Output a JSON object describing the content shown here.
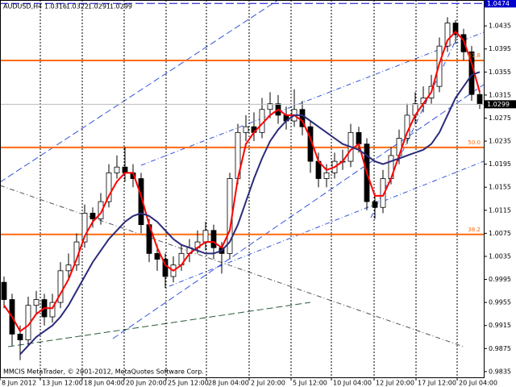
{
  "chart_data": {
    "type": "candlestick",
    "symbol": "AUDUSD,H4",
    "footer": "MMCIS MetaTrader, © 2001-2012, MetaQuotes Software Corp.",
    "xlim": [
      0,
      60
    ],
    "xticks": [
      {
        "value": 0,
        "label": "8 Jun 2012"
      },
      {
        "value": 5,
        "label": "13 Jun 12:00"
      },
      {
        "value": 10.2,
        "label": "18 Jun 04:00"
      },
      {
        "value": 15.4,
        "label": "20 Jun 20:00"
      },
      {
        "value": 20.6,
        "label": "25 Jun 12:00"
      },
      {
        "value": 25.6,
        "label": "28 Jun 04:00"
      },
      {
        "value": 30.9,
        "label": "2 Jul 20:00"
      },
      {
        "value": 36.1,
        "label": "5 Jul 12:00"
      },
      {
        "value": 41.1,
        "label": "10 Jul 04:00"
      },
      {
        "value": 46.4,
        "label": "12 Jul 20:00"
      },
      {
        "value": 51.6,
        "label": "17 Jul 12:00"
      },
      {
        "value": 56.7,
        "label": "20 Jul 04:00"
      }
    ],
    "ylim": [
      0.9825,
      1.048
    ],
    "yticks": [
      1.0435,
      1.0395,
      1.0355,
      1.0315,
      1.0275,
      1.0235,
      1.0195,
      1.0155,
      1.0115,
      1.0075,
      1.0035,
      0.9995,
      0.9955,
      0.9915,
      0.9875,
      0.9835
    ],
    "grid": true,
    "candles": {
      "open": [
        0.999,
        0.996,
        0.99,
        0.989,
        0.995,
        0.996,
        0.993,
        0.9955,
        1.001,
        1.002,
        1.006,
        1.011,
        1.01,
        1.013,
        1.018,
        1.019,
        1.018,
        1.017,
        1.009,
        1.004,
        1.003,
        1.0,
        1.002,
        1.004,
        1.005,
        1.006,
        1.008,
        1.005,
        1.004,
        1.017,
        1.025,
        1.026,
        1.025,
        1.029,
        1.03,
        1.028,
        1.027,
        1.029,
        1.026,
        1.02,
        1.017,
        1.018,
        1.02,
        1.02,
        1.025,
        1.023,
        1.013,
        1.012,
        1.017,
        1.021,
        1.024,
        1.028,
        1.03,
        1.031,
        1.033,
        1.04,
        1.044,
        1.042,
        1.039,
        1.0316
      ],
      "high": [
        1.0,
        0.997,
        0.9915,
        0.9965,
        0.9975,
        0.997,
        0.997,
        1.0025,
        1.004,
        1.0075,
        1.0125,
        1.012,
        1.0145,
        1.0195,
        1.021,
        1.0225,
        1.0195,
        1.018,
        1.01,
        1.0055,
        1.004,
        1.0035,
        1.0055,
        1.0065,
        1.008,
        1.0095,
        1.009,
        1.006,
        1.018,
        1.0265,
        1.028,
        1.0285,
        1.031,
        1.032,
        1.0315,
        1.0295,
        1.0325,
        1.0305,
        1.027,
        1.0215,
        1.0195,
        1.0215,
        1.022,
        1.0265,
        1.026,
        1.024,
        1.0145,
        1.0185,
        1.0225,
        1.0255,
        1.03,
        1.032,
        1.033,
        1.035,
        1.0415,
        1.045,
        1.0445,
        1.043,
        1.04,
        1.0322
      ],
      "low": [
        0.9945,
        0.988,
        0.9855,
        0.988,
        0.9935,
        0.9915,
        0.992,
        0.9945,
        0.9995,
        1.001,
        1.005,
        1.0085,
        1.009,
        1.012,
        1.017,
        1.0165,
        1.0155,
        1.0075,
        1.0025,
        1.001,
        0.998,
        0.999,
        1.001,
        1.0025,
        1.004,
        1.0045,
        1.003,
        1.0005,
        1.003,
        1.016,
        1.0235,
        1.0235,
        1.024,
        1.0275,
        1.0265,
        1.0255,
        1.026,
        1.0245,
        1.018,
        1.0155,
        1.0155,
        1.017,
        1.0185,
        1.019,
        1.0215,
        1.0115,
        1.01,
        1.011,
        1.016,
        1.0195,
        1.023,
        1.0265,
        1.0285,
        1.03,
        1.032,
        1.039,
        1.0405,
        1.0375,
        1.0305,
        1.0291
      ],
      "close": [
        0.996,
        0.99,
        0.989,
        0.995,
        0.996,
        0.993,
        0.9955,
        1.001,
        1.002,
        1.006,
        1.011,
        1.01,
        1.013,
        1.018,
        1.019,
        1.018,
        1.017,
        1.009,
        1.004,
        1.003,
        1.0,
        1.002,
        1.004,
        1.005,
        1.006,
        1.008,
        1.005,
        1.004,
        1.017,
        1.025,
        1.026,
        1.025,
        1.029,
        1.03,
        1.028,
        1.027,
        1.029,
        1.026,
        1.02,
        1.017,
        1.018,
        1.02,
        1.02,
        1.025,
        1.023,
        1.013,
        1.012,
        1.017,
        1.021,
        1.024,
        1.028,
        1.03,
        1.031,
        1.033,
        1.04,
        1.044,
        1.042,
        1.039,
        1.0316,
        1.0299
      ]
    },
    "moving_averages": [
      {
        "color": "#ff0000",
        "values": [
          0.995,
          0.993,
          0.9905,
          0.9915,
          0.9935,
          0.9945,
          0.9945,
          0.997,
          0.9995,
          1.003,
          1.007,
          1.0095,
          1.011,
          1.014,
          1.0165,
          1.018,
          1.018,
          1.014,
          1.009,
          1.005,
          1.002,
          1.001,
          1.002,
          1.004,
          1.005,
          1.006,
          1.006,
          1.005,
          1.008,
          1.017,
          1.023,
          1.025,
          1.0265,
          1.028,
          1.029,
          1.028,
          1.028,
          1.027,
          1.024,
          1.02,
          1.0185,
          1.019,
          1.02,
          1.022,
          1.023,
          1.018,
          1.014,
          1.014,
          1.017,
          1.021,
          1.025,
          1.028,
          1.03,
          1.032,
          1.037,
          1.041,
          1.0425,
          1.041,
          1.037,
          1.032
        ]
      },
      {
        "color": "#2b2b7a",
        "values": [
          null,
          null,
          0.9865,
          0.988,
          0.9895,
          0.9905,
          0.9915,
          0.993,
          0.995,
          0.9975,
          1.0,
          1.0025,
          1.0045,
          1.0065,
          1.008,
          1.0095,
          1.0105,
          1.011,
          1.0105,
          1.0095,
          1.008,
          1.0065,
          1.0055,
          1.005,
          1.0045,
          1.004,
          1.004,
          1.0045,
          1.006,
          1.009,
          1.013,
          1.017,
          1.0205,
          1.0235,
          1.0255,
          1.027,
          1.028,
          1.028,
          1.027,
          1.026,
          1.025,
          1.024,
          1.023,
          1.0225,
          1.022,
          1.021,
          1.02,
          1.0195,
          1.02,
          1.0205,
          1.021,
          1.0215,
          1.022,
          1.023,
          1.025,
          1.028,
          1.031,
          1.033,
          1.035,
          1.0355
        ]
      }
    ],
    "fib_color": "#ff6a10",
    "fib_levels": [
      {
        "name": "61.8",
        "value": 1.0375
      },
      {
        "name": "50.0",
        "value": 1.0224
      },
      {
        "name": "38.2",
        "value": 1.0073
      }
    ],
    "alert_line": 1.0474
  }
}
